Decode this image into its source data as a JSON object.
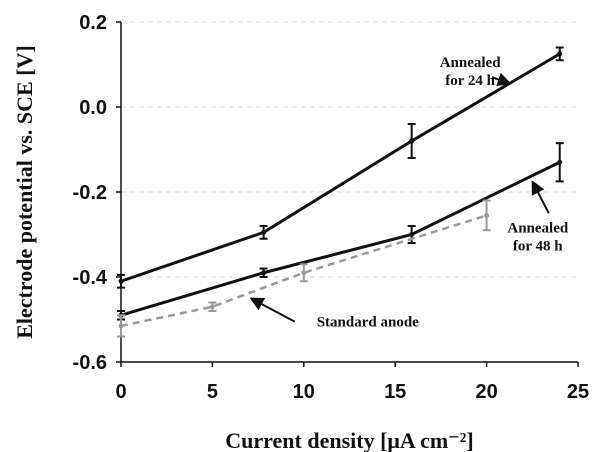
{
  "chart_data": {
    "type": "line",
    "title": "",
    "xlabel": "Current density [μA cm⁻²]",
    "ylabel": "Electrode potential vs. SCE [V]",
    "xlim": [
      0,
      25
    ],
    "ylim": [
      -0.6,
      0.2
    ],
    "xticks": [
      0,
      5,
      10,
      15,
      20,
      25
    ],
    "xtick_labels": [
      "0",
      "5",
      "10",
      "15",
      "20",
      "25"
    ],
    "yticks": [
      -0.6,
      -0.4,
      -0.2,
      0.0,
      0.2
    ],
    "ytick_labels": [
      "-0.6",
      "-0.4",
      "-0.2",
      "0.0",
      "0.2"
    ],
    "grid": "horizontal dashed",
    "legend": "none (direct annotations)",
    "series": [
      {
        "name": "Annealed for 24 h",
        "color": "#111111",
        "style": "solid",
        "points": [
          {
            "x": 0,
            "y": -0.41,
            "err": 0.015
          },
          {
            "x": 7.8,
            "y": -0.295,
            "err": 0.015
          },
          {
            "x": 15.9,
            "y": -0.08,
            "err": 0.04
          },
          {
            "x": 24,
            "y": 0.125,
            "err": 0.015
          }
        ]
      },
      {
        "name": "Annealed for 48 h",
        "color": "#111111",
        "style": "solid",
        "points": [
          {
            "x": 0,
            "y": -0.49,
            "err": 0.01
          },
          {
            "x": 7.8,
            "y": -0.39,
            "err": 0.01
          },
          {
            "x": 15.9,
            "y": -0.3,
            "err": 0.02
          },
          {
            "x": 24,
            "y": -0.13,
            "err": 0.045
          }
        ]
      },
      {
        "name": "Standard anode",
        "color": "#999999",
        "style": "dashed",
        "points": [
          {
            "x": 0,
            "y": -0.515,
            "err": 0.025
          },
          {
            "x": 5,
            "y": -0.47,
            "err": 0.01
          },
          {
            "x": 10,
            "y": -0.39,
            "err": 0.02
          },
          {
            "x": 20,
            "y": -0.255,
            "err": 0.035
          }
        ]
      }
    ],
    "annotations": [
      {
        "lines": [
          "Annealed",
          "for 24 h"
        ],
        "text_at": {
          "x": 19.1,
          "y": 0.085
        },
        "arrow_from": {
          "x": 20.3,
          "y": 0.07
        },
        "arrow_to": {
          "x": 21.3,
          "y": 0.055
        }
      },
      {
        "lines": [
          "Annealed",
          "for 48 h"
        ],
        "text_at": {
          "x": 22.8,
          "y": -0.305
        },
        "arrow_from": {
          "x": 23.4,
          "y": -0.25
        },
        "arrow_to": {
          "x": 22.5,
          "y": -0.175
        }
      },
      {
        "lines": [
          "Standard anode"
        ],
        "text_at": {
          "x": 13.5,
          "y": -0.505
        },
        "arrow_from": {
          "x": 9.5,
          "y": -0.505
        },
        "arrow_to": {
          "x": 7.1,
          "y": -0.45
        }
      }
    ]
  }
}
